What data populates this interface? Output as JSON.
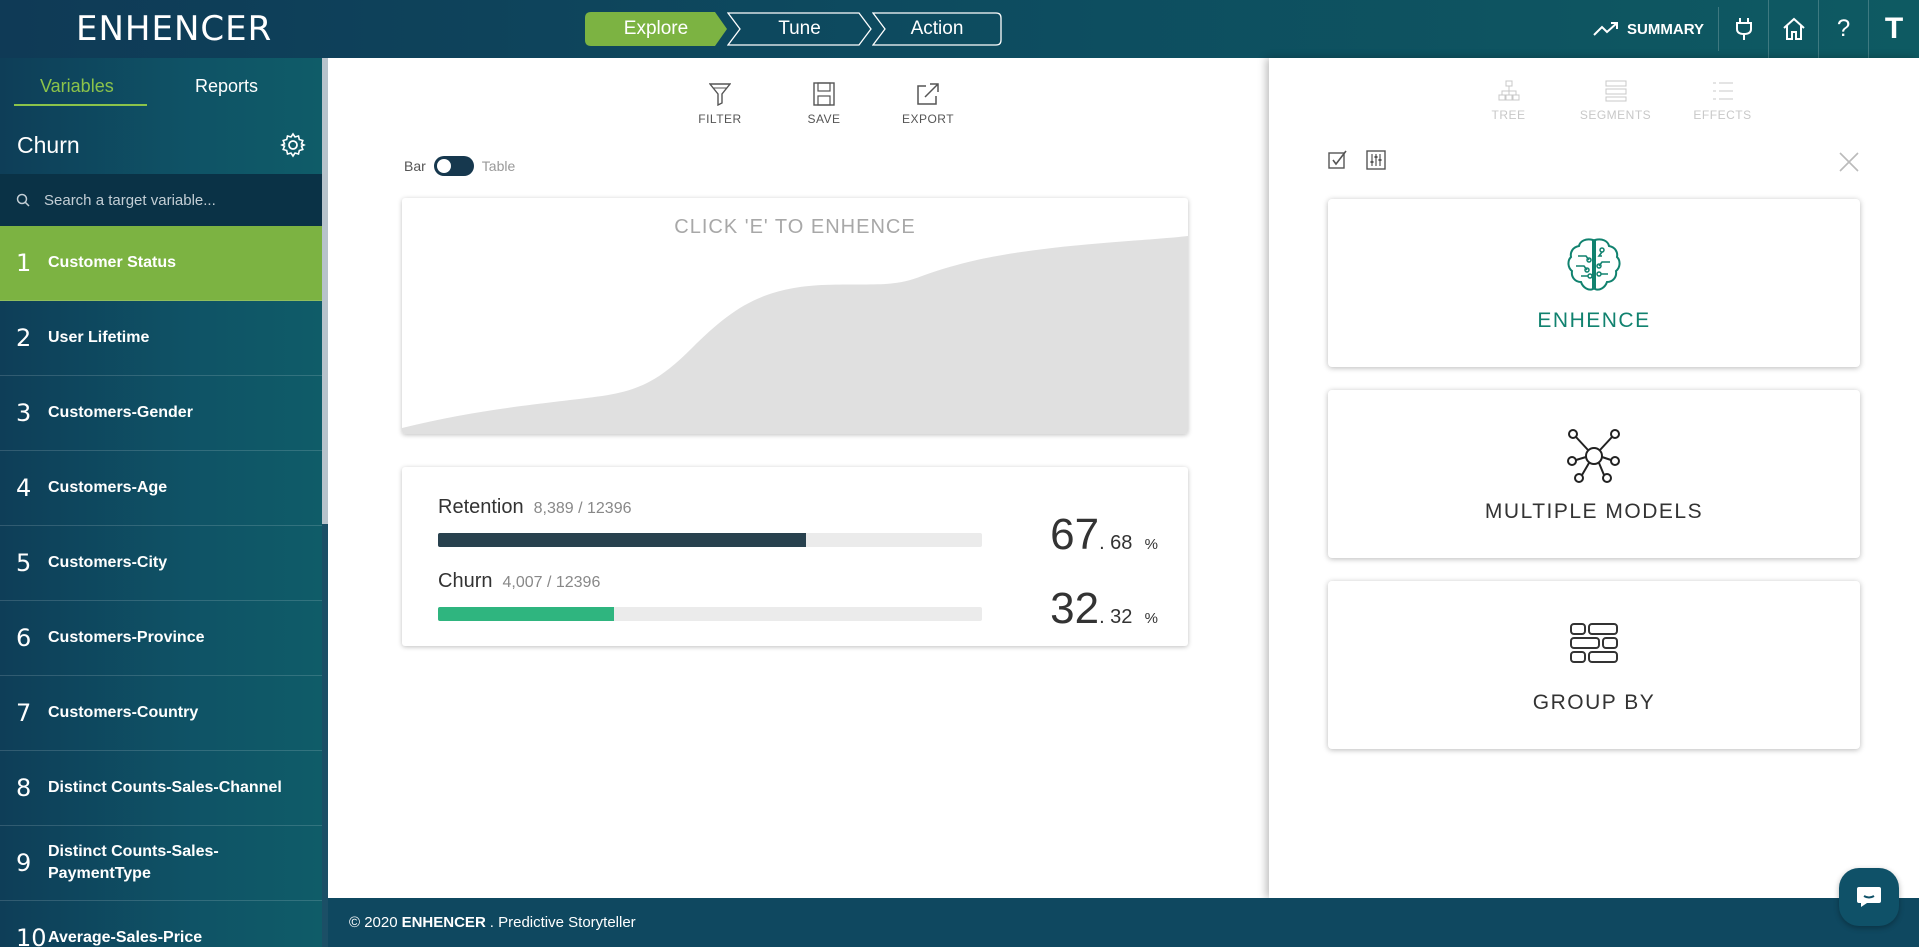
{
  "app": {
    "logo": "ENHENCER"
  },
  "steps": [
    {
      "label": "Explore",
      "active": true
    },
    {
      "label": "Tune",
      "active": false
    },
    {
      "label": "Action",
      "active": false
    }
  ],
  "topbar": {
    "summary_label": "SUMMARY",
    "user_initial": "T"
  },
  "sidebar": {
    "tabs": [
      {
        "label": "Variables",
        "active": true
      },
      {
        "label": "Reports",
        "active": false
      }
    ],
    "target_title": "Churn",
    "search_placeholder": "Search a target variable...",
    "items": [
      {
        "num": "1",
        "label": "Customer Status",
        "active": true
      },
      {
        "num": "2",
        "label": "User Lifetime"
      },
      {
        "num": "3",
        "label": "Customers-Gender"
      },
      {
        "num": "4",
        "label": "Customers-Age"
      },
      {
        "num": "5",
        "label": "Customers-City"
      },
      {
        "num": "6",
        "label": "Customers-Province"
      },
      {
        "num": "7",
        "label": "Customers-Country"
      },
      {
        "num": "8",
        "label": "Distinct Counts-Sales-Channel"
      },
      {
        "num": "9",
        "label": "Distinct Counts-Sales-PaymentType"
      },
      {
        "num": "10",
        "label": "Average-Sales-Price"
      }
    ]
  },
  "toolbar": {
    "filter": "FILTER",
    "save": "SAVE",
    "export": "EXPORT"
  },
  "view_toggle": {
    "left": "Bar",
    "right": "Table"
  },
  "chart": {
    "hint": "CLICK 'E' TO ENHENCE"
  },
  "stats": [
    {
      "name": "Retention",
      "count": "8,389 / 12396",
      "pct_int": "67",
      "pct_dec": ". 68",
      "pct_sign": "%",
      "fraction": 0.6768,
      "color": "#28414e"
    },
    {
      "name": "Churn",
      "count": "4,007 / 12396",
      "pct_int": "32",
      "pct_dec": ". 32",
      "pct_sign": "%",
      "fraction": 0.3232,
      "color": "#2fb57f"
    }
  ],
  "right_tabs": {
    "tree": "TREE",
    "segments": "SEGMENTS",
    "effects": "EFFECTS"
  },
  "actions": {
    "enhence": "ENHENCE",
    "multiple_models": "MULTIPLE MODELS",
    "group_by": "GROUP BY"
  },
  "footer": {
    "prefix": "© 2020",
    "brand": "ENHENCER",
    "suffix": ". Predictive Storyteller"
  },
  "colors": {
    "accent_green": "#8bc34a",
    "active_row": "#7cb342",
    "teal": "#11826f",
    "navy": "#0f3a56"
  }
}
